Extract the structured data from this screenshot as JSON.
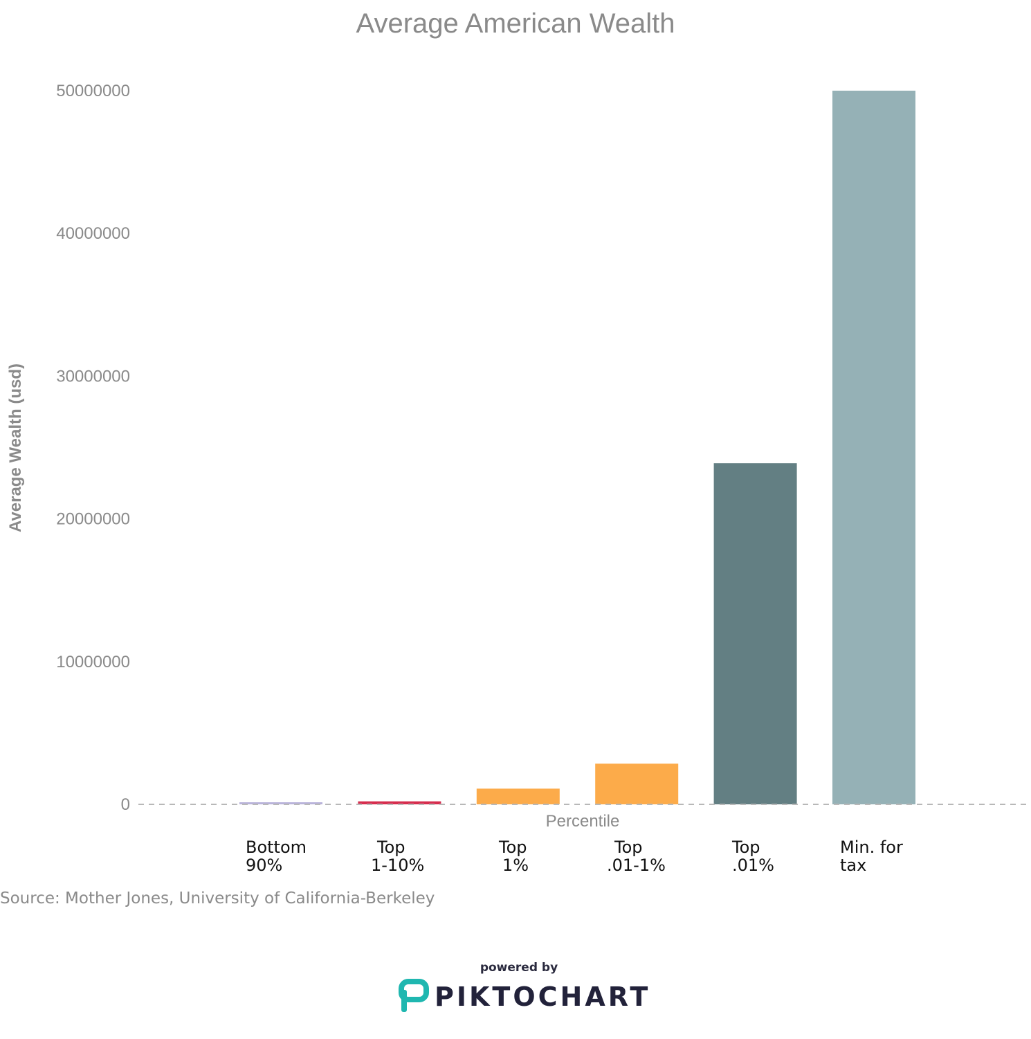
{
  "chart_data": {
    "type": "bar",
    "title": "Average American Wealth",
    "xlabel": "Percentile",
    "ylabel": "Average Wealth (usd)",
    "ylim": [
      0,
      50000000
    ],
    "yticks": [
      0,
      10000000,
      20000000,
      30000000,
      40000000,
      50000000
    ],
    "ytick_labels": [
      "0",
      "10000000",
      "20000000",
      "30000000",
      "40000000",
      "50000000"
    ],
    "categories": [
      [
        "Bottom",
        "90%"
      ],
      [
        "Top",
        "1-10%"
      ],
      [
        "Top",
        "1%"
      ],
      [
        "Top",
        ".01-1%"
      ],
      [
        "Top",
        ".01%"
      ],
      [
        "Min. for",
        "tax"
      ]
    ],
    "values": [
      84000,
      210000,
      1100000,
      2850000,
      23900000,
      50000000
    ],
    "colors": [
      "#b9b3db",
      "#d62e4f",
      "#fcab4a",
      "#fcab4a",
      "#637f83",
      "#95b1b6"
    ],
    "grid": false,
    "legend": "none"
  },
  "footer": {
    "source": "Source: Mother Jones, University of California-Berkeley",
    "powered_by": "powered by",
    "brand": "PIKTOCHART"
  },
  "colors": {
    "text_muted": "#8a8a8a",
    "brand_teal": "#1fb7b0",
    "brand_dark": "#22223a"
  }
}
